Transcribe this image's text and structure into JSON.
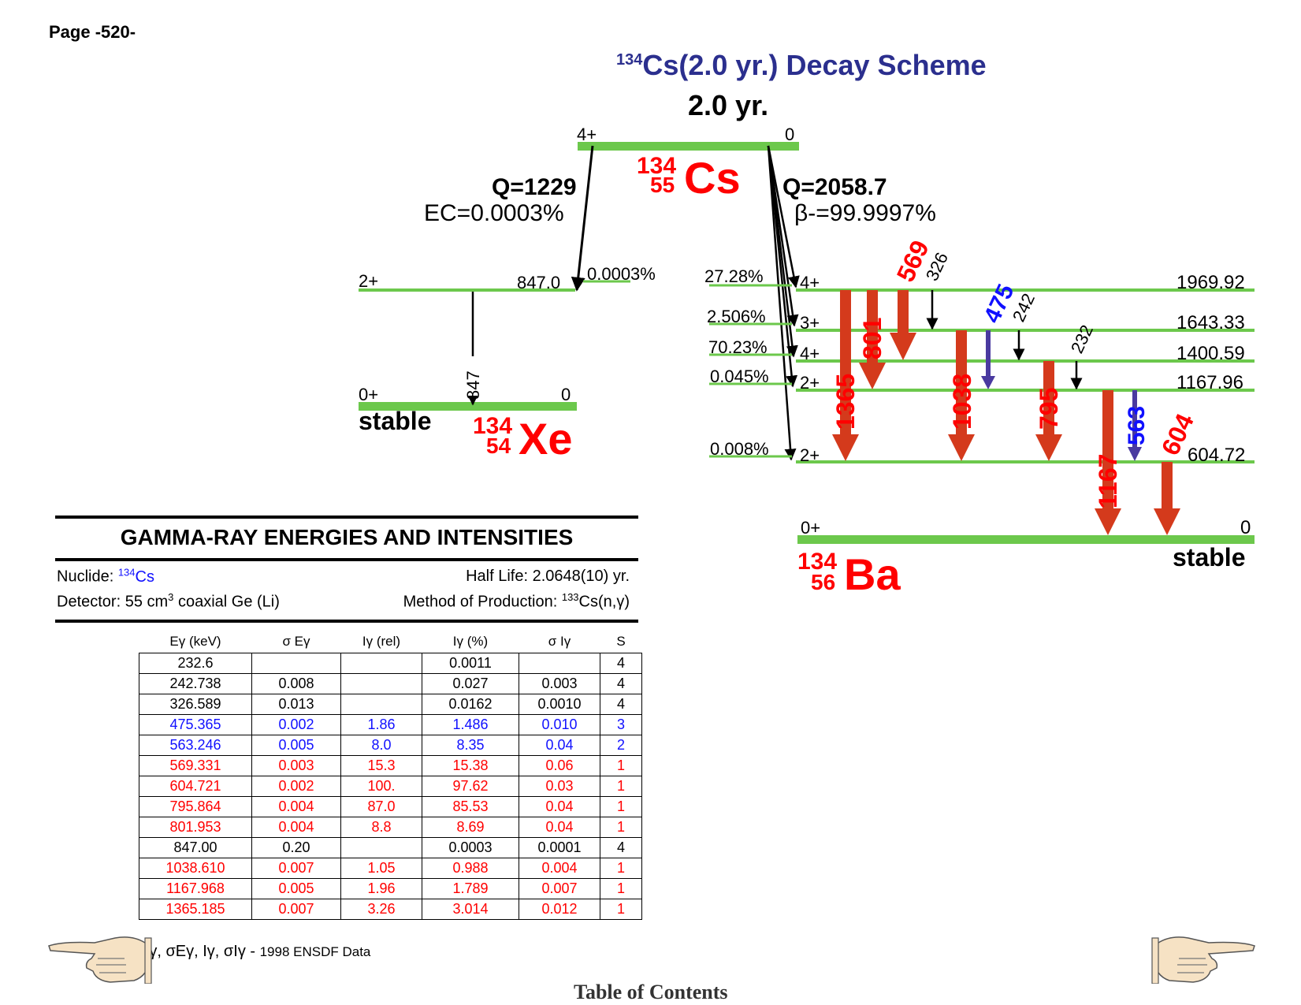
{
  "page_label": "Page -520-",
  "title": {
    "mass": "134",
    "rest": "Cs(2.0 yr.) Decay Scheme"
  },
  "parent": {
    "half_life": "2.0 yr.",
    "spin": "4+",
    "energy": "0",
    "mass": "134",
    "z": "55",
    "symbol": "Cs"
  },
  "ec_branch": {
    "q": "Q=1229",
    "label": "EC=0.0003%"
  },
  "beta_branch": {
    "q": "Q=2058.7",
    "label": "β-=99.9997%"
  },
  "xe": {
    "mass": "134",
    "z": "54",
    "symbol": "Xe",
    "stable": "stable",
    "levels": [
      {
        "spin": "2+",
        "energy": "847.0",
        "feed": "0.0003%"
      },
      {
        "spin": "0+",
        "energy": "0"
      }
    ],
    "gamma": "847"
  },
  "ba": {
    "mass": "134",
    "z": "56",
    "symbol": "Ba",
    "stable": "stable",
    "levels": [
      {
        "spin": "4+",
        "energy": "1969.92",
        "feed": "27.28%"
      },
      {
        "spin": "3+",
        "energy": "1643.33",
        "feed": "2.506%"
      },
      {
        "spin": "4+",
        "energy": "1400.59",
        "feed": "70.23%"
      },
      {
        "spin": "2+",
        "energy": "1167.96",
        "feed": "0.045%"
      },
      {
        "spin": "2+",
        "energy": "604.72",
        "feed": "0.008%"
      },
      {
        "spin": "0+",
        "energy": "0",
        "feed": ""
      }
    ],
    "gammas": [
      {
        "label": "1365",
        "color": "#e8281c"
      },
      {
        "label": "801",
        "color": "#e8281c"
      },
      {
        "label": "569",
        "color": "#e8281c"
      },
      {
        "label": "326",
        "color": "#000000"
      },
      {
        "label": "1038",
        "color": "#e8281c"
      },
      {
        "label": "475",
        "color": "#1010ff"
      },
      {
        "label": "242",
        "color": "#000000"
      },
      {
        "label": "795",
        "color": "#e8281c"
      },
      {
        "label": "232",
        "color": "#000000"
      },
      {
        "label": "1167",
        "color": "#e8281c"
      },
      {
        "label": "563",
        "color": "#1010ff"
      },
      {
        "label": "604",
        "color": "#e8281c"
      }
    ]
  },
  "colors": {
    "level": "#6cc84c",
    "strong": "#d43a1c",
    "weak_blue": "#4a3aa0",
    "title": "#2b2f8e"
  },
  "table": {
    "title": "GAMMA-RAY ENERGIES AND INTENSITIES",
    "nuclide_label": "Nuclide:",
    "nuclide_mass": "134",
    "nuclide_symbol": "Cs",
    "half_life": "Half Life: 2.0648(10) yr.",
    "detector_a": "Detector: 55 cm",
    "detector_sup": "3",
    "detector_b": " coaxial Ge (Li)",
    "method_a": "Method of Production: ",
    "method_sup": "133",
    "method_b": "Cs(n,γ)",
    "headers": [
      "Eγ (keV)",
      "σ Eγ",
      "Iγ (rel)",
      "Iγ (%)",
      "σ Iγ",
      "S"
    ],
    "rows": [
      {
        "style": "black",
        "cells": [
          "232.6",
          "",
          "",
          "0.0011",
          "",
          "4"
        ]
      },
      {
        "style": "black",
        "cells": [
          "242.738",
          "0.008",
          "",
          "0.027",
          "0.003",
          "4"
        ]
      },
      {
        "style": "black",
        "cells": [
          "326.589",
          "0.013",
          "",
          "0.0162",
          "0.0010",
          "4"
        ]
      },
      {
        "style": "blue",
        "cells": [
          "475.365",
          "0.002",
          "1.86",
          "1.486",
          "0.010",
          "3"
        ]
      },
      {
        "style": "blue",
        "cells": [
          "563.246",
          "0.005",
          "8.0",
          "8.35",
          "0.04",
          "2"
        ]
      },
      {
        "style": "red",
        "cells": [
          "569.331",
          "0.003",
          "15.3",
          "15.38",
          "0.06",
          "1"
        ]
      },
      {
        "style": "red",
        "cells": [
          "604.721",
          "0.002",
          "100.",
          "97.62",
          "0.03",
          "1"
        ]
      },
      {
        "style": "red",
        "cells": [
          "795.864",
          "0.004",
          "87.0",
          "85.53",
          "0.04",
          "1"
        ]
      },
      {
        "style": "red",
        "cells": [
          "801.953",
          "0.004",
          "8.8",
          "8.69",
          "0.04",
          "1"
        ]
      },
      {
        "style": "black",
        "cells": [
          "847.00",
          "0.20",
          "",
          "0.0003",
          "0.0001",
          "4"
        ]
      },
      {
        "style": "red",
        "cells": [
          "1038.610",
          "0.007",
          "1.05",
          "0.988",
          "0.004",
          "1"
        ]
      },
      {
        "style": "red",
        "cells": [
          "1167.968",
          "0.005",
          "1.96",
          "1.789",
          "0.007",
          "1"
        ]
      },
      {
        "style": "red",
        "cells": [
          "1365.185",
          "0.007",
          "3.26",
          "3.014",
          "0.012",
          "1"
        ]
      }
    ],
    "footnote_symbols": "Eγ, σEγ, Iγ, σIγ - ",
    "footnote_text": "1998 ENSDF Data"
  },
  "toc_label": "Table of Contents"
}
